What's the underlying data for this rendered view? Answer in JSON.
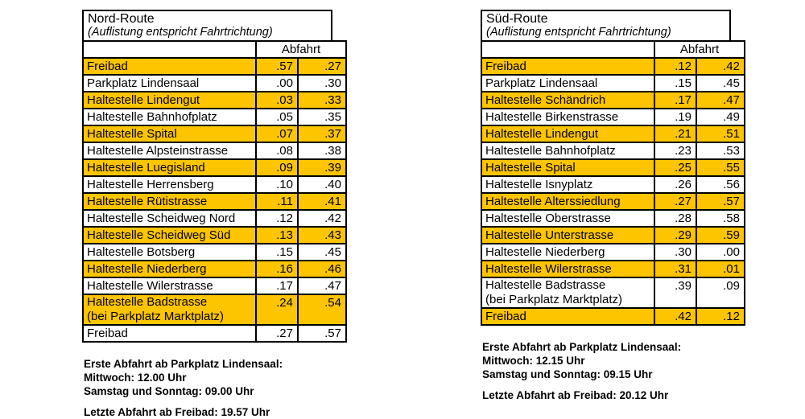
{
  "colors": {
    "highlight_row": "#FDC500",
    "table_border": "#000000",
    "text": "#000000",
    "background": "#ffffff"
  },
  "routes": [
    {
      "title": "Nord-Route",
      "subtitle": "(Auflistung entspricht Fahrtrichtung)",
      "departure_header": "Abfahrt",
      "rows": [
        {
          "name": "Freibad",
          "t1": ".57",
          "t2": ".27",
          "highlight": true
        },
        {
          "name": "Parkplatz Lindensaal",
          "t1": ".00",
          "t2": ".30",
          "highlight": false
        },
        {
          "name": "Haltestelle Lindengut",
          "t1": ".03",
          "t2": ".33",
          "highlight": true
        },
        {
          "name": "Haltestelle Bahnhofplatz",
          "t1": ".05",
          "t2": ".35",
          "highlight": false
        },
        {
          "name": "Haltestelle Spital",
          "t1": ".07",
          "t2": ".37",
          "highlight": true
        },
        {
          "name": "Haltestelle Alpsteinstrasse",
          "t1": ".08",
          "t2": ".38",
          "highlight": false
        },
        {
          "name": "Haltestelle Luegisland",
          "t1": ".09",
          "t2": ".39",
          "highlight": true
        },
        {
          "name": "Haltestelle Herrensberg",
          "t1": ".10",
          "t2": ".40",
          "highlight": false
        },
        {
          "name": "Haltestelle Rütistrasse",
          "t1": ".11",
          "t2": ".41",
          "highlight": true
        },
        {
          "name": "Haltestelle Scheidweg Nord",
          "t1": ".12",
          "t2": ".42",
          "highlight": false
        },
        {
          "name": "Haltestelle Scheidweg Süd",
          "t1": ".13",
          "t2": ".43",
          "highlight": true
        },
        {
          "name": "Haltestelle Botsberg",
          "t1": ".15",
          "t2": ".45",
          "highlight": false
        },
        {
          "name": "Haltestelle Niederberg",
          "t1": ".16",
          "t2": ".46",
          "highlight": true
        },
        {
          "name": "Haltestelle Wilerstrasse",
          "t1": ".17",
          "t2": ".47",
          "highlight": false
        },
        {
          "name": "Haltestelle Badstrasse",
          "name_line2": "(bei Parkplatz Marktplatz)",
          "t1": ".24",
          "t2": ".54",
          "highlight": true
        },
        {
          "name": "Freibad",
          "t1": ".27",
          "t2": ".57",
          "highlight": false
        }
      ],
      "notes": [
        "Erste Abfahrt ab Parkplatz Lindensaal:",
        "Mittwoch: 12.00 Uhr",
        "Samstag und Sonntag: 09.00 Uhr",
        "",
        "Letzte Abfahrt ab Freibad: 19.57 Uhr"
      ]
    },
    {
      "title": "Süd-Route",
      "subtitle": "(Auflistung entspricht Fahrtrichtung)",
      "departure_header": "Abfahrt",
      "rows": [
        {
          "name": "Freibad",
          "t1": ".12",
          "t2": ".42",
          "highlight": true
        },
        {
          "name": "Parkplatz Lindensaal",
          "t1": ".15",
          "t2": ".45",
          "highlight": false
        },
        {
          "name": "Haltestelle Schändrich",
          "t1": ".17",
          "t2": ".47",
          "highlight": true
        },
        {
          "name": "Haltestelle Birkenstrasse",
          "t1": ".19",
          "t2": ".49",
          "highlight": false
        },
        {
          "name": "Haltestelle Lindengut",
          "t1": ".21",
          "t2": ".51",
          "highlight": true
        },
        {
          "name": "Haltestelle Bahnhofplatz",
          "t1": ".23",
          "t2": ".53",
          "highlight": false
        },
        {
          "name": "Haltestelle Spital",
          "t1": ".25",
          "t2": ".55",
          "highlight": true
        },
        {
          "name": "Haltestelle Isnyplatz",
          "t1": ".26",
          "t2": ".56",
          "highlight": false
        },
        {
          "name": "Haltestelle Alterssiedlung",
          "t1": ".27",
          "t2": ".57",
          "highlight": true
        },
        {
          "name": "Haltestelle Oberstrasse",
          "t1": ".28",
          "t2": ".58",
          "highlight": false
        },
        {
          "name": "Haltestelle Unterstrasse",
          "t1": ".29",
          "t2": ".59",
          "highlight": true
        },
        {
          "name": "Haltestelle Niederberg",
          "t1": ".30",
          "t2": ".00",
          "highlight": false
        },
        {
          "name": "Haltestelle Wilerstrasse",
          "t1": ".31",
          "t2": ".01",
          "highlight": true
        },
        {
          "name": "Haltestelle Badstrasse",
          "name_line2": "(bei Parkplatz Marktplatz)",
          "t1": ".39",
          "t2": ".09",
          "highlight": false
        },
        {
          "name": "Freibad",
          "t1": ".42",
          "t2": ".12",
          "highlight": true
        }
      ],
      "notes": [
        "Erste Abfahrt ab Parkplatz Lindensaal:",
        "Mittwoch: 12.15 Uhr",
        "Samstag und Sonntag: 09.15 Uhr",
        "",
        "Letzte Abfahrt ab Freibad: 20.12 Uhr"
      ]
    }
  ]
}
